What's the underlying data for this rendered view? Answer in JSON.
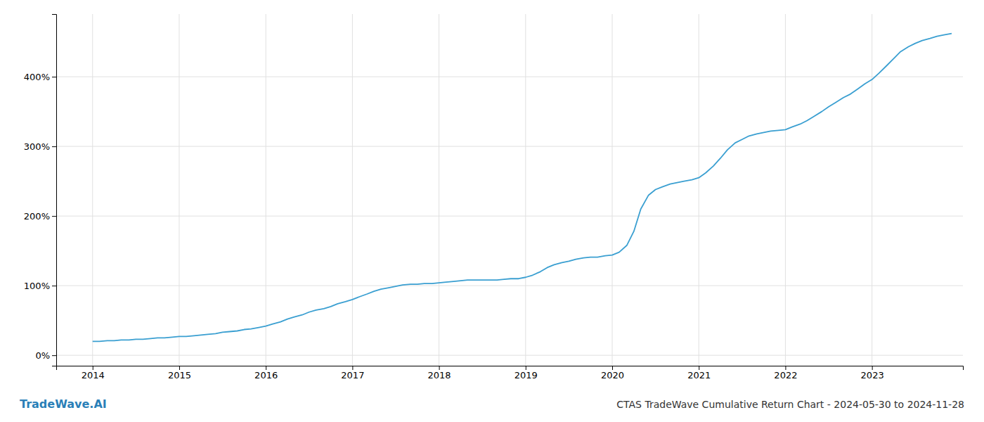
{
  "chart_data": {
    "type": "line",
    "title": "CTAS TradeWave Cumulative Return Chart - 2024-05-30 to 2024-11-28",
    "annotations": [
      "TradeWave.AI"
    ],
    "color": "#3a9fd1",
    "grid": true,
    "x": [
      2014.0,
      2014.08,
      2014.17,
      2014.25,
      2014.33,
      2014.42,
      2014.5,
      2014.58,
      2014.67,
      2014.75,
      2014.83,
      2014.92,
      2015.0,
      2015.08,
      2015.17,
      2015.25,
      2015.33,
      2015.42,
      2015.5,
      2015.58,
      2015.67,
      2015.75,
      2015.83,
      2015.92,
      2016.0,
      2016.08,
      2016.17,
      2016.25,
      2016.33,
      2016.42,
      2016.5,
      2016.58,
      2016.67,
      2016.75,
      2016.83,
      2016.92,
      2017.0,
      2017.08,
      2017.17,
      2017.25,
      2017.33,
      2017.42,
      2017.5,
      2017.58,
      2017.67,
      2017.75,
      2017.83,
      2017.92,
      2018.0,
      2018.08,
      2018.17,
      2018.25,
      2018.33,
      2018.42,
      2018.5,
      2018.58,
      2018.67,
      2018.75,
      2018.83,
      2018.92,
      2019.0,
      2019.08,
      2019.17,
      2019.25,
      2019.33,
      2019.42,
      2019.5,
      2019.58,
      2019.67,
      2019.75,
      2019.83,
      2019.92,
      2020.0,
      2020.08,
      2020.17,
      2020.25,
      2020.33,
      2020.42,
      2020.5,
      2020.58,
      2020.67,
      2020.75,
      2020.83,
      2020.92,
      2021.0,
      2021.08,
      2021.17,
      2021.25,
      2021.33,
      2021.42,
      2021.5,
      2021.58,
      2021.67,
      2021.75,
      2021.83,
      2021.92,
      2022.0,
      2022.08,
      2022.17,
      2022.25,
      2022.33,
      2022.42,
      2022.5,
      2022.58,
      2022.67,
      2022.75,
      2022.83,
      2022.92,
      2023.0,
      2023.08,
      2023.17,
      2023.25,
      2023.33,
      2023.42,
      2023.5,
      2023.58,
      2023.67,
      2023.75,
      2023.83,
      2023.92
    ],
    "values": [
      20,
      20,
      21,
      21,
      22,
      22,
      23,
      23,
      24,
      25,
      25,
      26,
      27,
      27,
      28,
      29,
      30,
      31,
      33,
      34,
      35,
      37,
      38,
      40,
      42,
      45,
      48,
      52,
      55,
      58,
      62,
      65,
      67,
      70,
      74,
      77,
      80,
      84,
      88,
      92,
      95,
      97,
      99,
      101,
      102,
      102,
      103,
      103,
      104,
      105,
      106,
      107,
      108,
      108,
      108,
      108,
      108,
      109,
      110,
      110,
      112,
      115,
      120,
      126,
      130,
      133,
      135,
      138,
      140,
      141,
      141,
      143,
      144,
      148,
      158,
      178,
      210,
      230,
      238,
      242,
      246,
      248,
      250,
      252,
      255,
      262,
      272,
      283,
      295,
      305,
      310,
      315,
      318,
      320,
      322,
      323,
      324,
      328,
      332,
      337,
      343,
      350,
      357,
      363,
      370,
      375,
      382,
      390,
      396,
      405,
      416,
      426,
      436,
      443,
      448,
      452,
      455,
      458,
      460,
      462
    ],
    "xlim": [
      2013.58,
      2024.05
    ],
    "xticks": [
      2014,
      2015,
      2016,
      2017,
      2018,
      2019,
      2020,
      2021,
      2022,
      2023
    ],
    "ylim": [
      -15,
      490
    ],
    "yticks": [
      {
        "value": 0,
        "label": "0%"
      },
      {
        "value": 100,
        "label": "100%"
      },
      {
        "value": 200,
        "label": "200%"
      },
      {
        "value": 300,
        "label": "300%"
      },
      {
        "value": 400,
        "label": "400%"
      }
    ]
  }
}
